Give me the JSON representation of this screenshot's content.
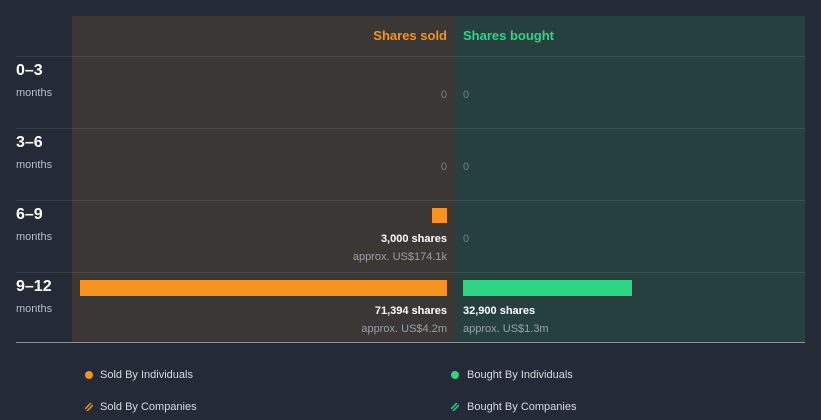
{
  "chart_data": {
    "type": "bar",
    "title": "",
    "columns": {
      "sold": "Shares sold",
      "bought": "Shares bought"
    },
    "colors": {
      "sold": "#f7931e",
      "bought": "#2ed583"
    },
    "rows": [
      {
        "period": "0–3",
        "unit": "months",
        "sold": {
          "shares": 0,
          "label": "0",
          "value_label": ""
        },
        "bought": {
          "shares": 0,
          "label": "0",
          "value_label": ""
        }
      },
      {
        "period": "3–6",
        "unit": "months",
        "sold": {
          "shares": 0,
          "label": "0",
          "value_label": ""
        },
        "bought": {
          "shares": 0,
          "label": "0",
          "value_label": ""
        }
      },
      {
        "period": "6–9",
        "unit": "months",
        "sold": {
          "shares": 3000,
          "label": "3,000 shares",
          "value_label": "approx. US$174.1k"
        },
        "bought": {
          "shares": 0,
          "label": "0",
          "value_label": ""
        }
      },
      {
        "period": "9–12",
        "unit": "months",
        "sold": {
          "shares": 71394,
          "label": "71,394 shares",
          "value_label": "approx. US$4.2m"
        },
        "bought": {
          "shares": 32900,
          "label": "32,900 shares",
          "value_label": "approx. US$1.3m"
        }
      }
    ],
    "legend": [
      {
        "label": "Sold By Individuals",
        "marker": "dot",
        "color": "#f7931e"
      },
      {
        "label": "Bought By Individuals",
        "marker": "dot",
        "color": "#2ed583"
      },
      {
        "label": "Sold By Companies",
        "marker": "hatch",
        "color": "#f7931e"
      },
      {
        "label": "Bought By Companies",
        "marker": "hatch",
        "color": "#2ed583"
      }
    ]
  }
}
